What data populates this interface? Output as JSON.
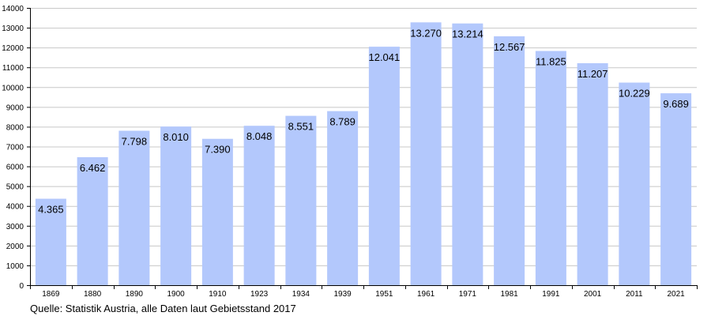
{
  "chart_data": {
    "type": "bar",
    "categories": [
      "1869",
      "1880",
      "1890",
      "1900",
      "1910",
      "1923",
      "1934",
      "1939",
      "1951",
      "1961",
      "1971",
      "1981",
      "1991",
      "2001",
      "2011",
      "2021"
    ],
    "values": [
      4365,
      6462,
      7798,
      8010,
      7390,
      8048,
      8551,
      8789,
      12041,
      13270,
      13214,
      12567,
      11825,
      11207,
      10229,
      9689
    ],
    "value_labels": [
      "4.365",
      "6.462",
      "7.798",
      "8.010",
      "7.390",
      "8.048",
      "8.551",
      "8.789",
      "12.041",
      "13.270",
      "13.214",
      "12.567",
      "11.825",
      "11.207",
      "10.229",
      "9.689"
    ],
    "y_ticks": [
      0,
      1000,
      2000,
      3000,
      4000,
      5000,
      6000,
      7000,
      8000,
      9000,
      10000,
      11000,
      12000,
      13000,
      14000
    ],
    "ylim": [
      0,
      14000
    ],
    "grid": true,
    "bar_color": "#b3c8fc",
    "grid_color": "#c8c8c8",
    "title": "",
    "xlabel": "",
    "ylabel": ""
  },
  "source": "Quelle: Statistik Austria, alle Daten laut Gebietsstand 2017"
}
